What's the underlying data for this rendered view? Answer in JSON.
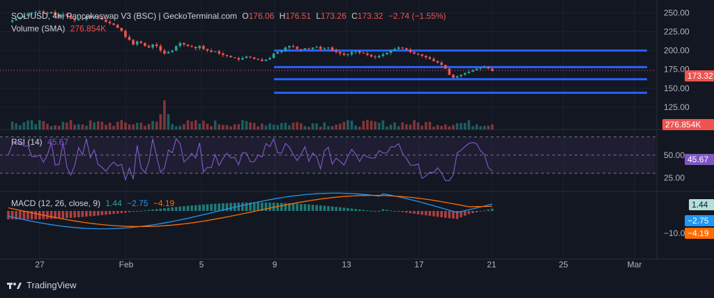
{
  "header": {
    "symbol": "SOL/USD, 4h, Pancakeswap V3 (BSC) | GeckoTerminal.com",
    "open_label": "O",
    "open": "176.06",
    "high_label": "H",
    "high": "176.51",
    "low_label": "L",
    "low": "173.26",
    "close_label": "C",
    "close": "173.32",
    "change": "−2.74 (−1.55%)",
    "volume_label": "Volume (SMA)",
    "volume_value": "276.854K"
  },
  "badges": {
    "price": "173.32",
    "volume": "276.854K",
    "rsi": "45.67",
    "macd": "1.44",
    "macd_line": "−2.75",
    "signal": "−4.19"
  },
  "rsi_legend": {
    "label": "RSI (14)",
    "value": "45.67"
  },
  "macd_legend": {
    "label": "MACD (12, 26, close, 9)",
    "hist": "1.44",
    "macd": "−2.75",
    "signal": "−4.19"
  },
  "footer": {
    "brand": "TradingView"
  },
  "colors": {
    "up": "#26a69a",
    "down": "#ef5350",
    "hline": "#2962ff",
    "rsi": "#7e57c2",
    "macd": "#2196f3",
    "signal": "#ff6d00",
    "bg": "#131722",
    "grid": "#1e222d",
    "text": "#b2b5be"
  },
  "chart_data": [
    {
      "type": "candlestick",
      "title": "SOL/USD, 4h",
      "x_ticks": [
        "27",
        "Feb",
        "5",
        "9",
        "13",
        "17",
        "21",
        "25",
        "Mar"
      ],
      "y_ticks": [
        125,
        150,
        175,
        200,
        225,
        250
      ],
      "ylim": [
        112,
        254
      ],
      "horizontal_levels": [
        200,
        178,
        162,
        144
      ],
      "last_price": 173.32,
      "close_series": [
        238,
        240,
        242,
        244,
        246,
        249,
        250,
        251,
        252,
        250,
        249,
        251,
        247,
        244,
        248,
        246,
        242,
        240,
        242,
        241,
        246,
        244,
        245,
        243,
        241,
        238,
        236,
        234,
        230,
        226,
        218,
        214,
        208,
        212,
        210,
        206,
        204,
        208,
        206,
        200,
        196,
        198,
        200,
        206,
        210,
        208,
        206,
        205,
        203,
        206,
        202,
        200,
        198,
        199,
        196,
        194,
        193,
        191,
        190,
        188,
        190,
        192,
        191,
        189,
        188,
        186,
        188,
        190,
        196,
        198,
        200,
        204,
        206,
        205,
        202,
        201,
        203,
        202,
        204,
        205,
        202,
        203,
        204,
        200,
        198,
        196,
        194,
        195,
        198,
        199,
        197,
        196,
        194,
        192,
        191,
        193,
        195,
        197,
        200,
        202,
        204,
        203,
        201,
        198,
        196,
        195,
        193,
        191,
        189,
        186,
        184,
        181,
        176,
        168,
        164,
        166,
        168,
        170,
        172,
        174,
        176,
        177,
        178,
        176,
        173
      ]
    },
    {
      "type": "bar",
      "title": "Volume (SMA)",
      "last_value": "276.854K"
    },
    {
      "type": "line",
      "title": "RSI (14)",
      "y_ticks": [
        25,
        50
      ],
      "band": [
        30,
        70
      ],
      "last_value": 45.67
    },
    {
      "type": "bar",
      "title": "MACD (12, 26, close, 9)",
      "y_ticks": [
        -10
      ],
      "histogram_last": 1.44,
      "macd_last": -2.75,
      "signal_last": -4.19
    }
  ]
}
